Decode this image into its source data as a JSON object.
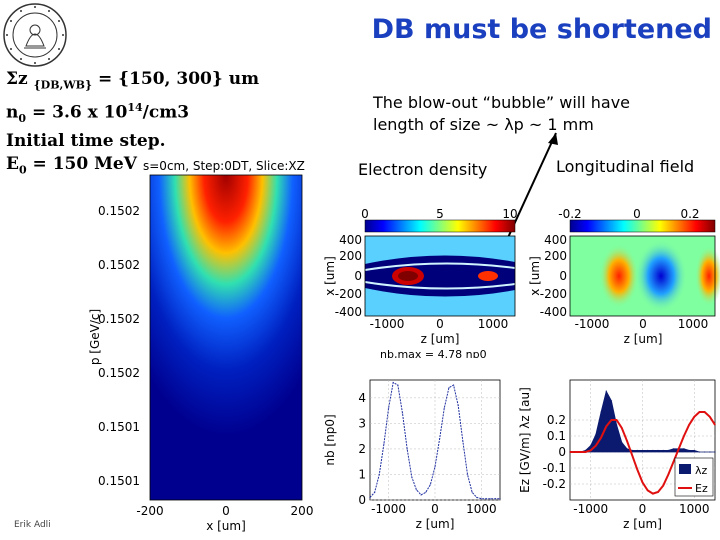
{
  "slide": {
    "title": "DB must be shortened",
    "params": {
      "line1_main": "Σz ",
      "line1_sub": "{DB,WB}",
      "line1_rest": " = {150, 300} um",
      "line2_a": "n",
      "line2_sub": "0",
      "line2_b": " = 3.6 x 10",
      "line2_sup": "14",
      "line2_c": "/cm3",
      "line3": "Initial time step.",
      "line4_a": "E",
      "line4_sub": "0",
      "line4_b": " = 150 MeV"
    },
    "bubble_line1": "The blow-out “bubble” will have",
    "bubble_line2": "length of size ~ λp ~ 1 mm",
    "electron_density_label": "Electron density",
    "longitudinal_field_label": "Longitudinal field",
    "footer": "Erik Adli"
  },
  "phase_plot": {
    "header": "s=0cm, Step:0DT, Slice:XZ",
    "ylabel": "p [GeV/c]",
    "xlabel": "x [um]",
    "yticks": [
      "0.1502",
      "0.1502",
      "0.1502",
      "0.1502",
      "0.1501",
      "0.1501"
    ],
    "xticks": [
      "-200",
      "0",
      "200"
    ]
  },
  "density_map": {
    "colorbar_ticks": [
      "0",
      "5",
      "10"
    ],
    "yticks": [
      "400",
      "200",
      "0",
      "-200",
      "-400"
    ],
    "xticks": [
      "-1000",
      "0",
      "1000"
    ],
    "ylabel": "x [um]",
    "xlabel": "z [um]",
    "annotation": "nb,max = 4.78 np0"
  },
  "field_map": {
    "colorbar_ticks": [
      "-0.2",
      "0",
      "0.2"
    ],
    "yticks": [
      "400",
      "200",
      "0",
      "-200",
      "-400"
    ],
    "xticks": [
      "-1000",
      "0",
      "1000"
    ],
    "ylabel": "x [um]",
    "xlabel": "z [um]"
  },
  "chart_data": [
    {
      "type": "line",
      "title": "nb,max = 4.78 np0",
      "xlabel": "z [um]",
      "ylabel": "nb [np0]",
      "xlim": [
        -1400,
        1400
      ],
      "ylim": [
        0,
        4.7
      ],
      "xticks": [
        -1000,
        0,
        1000
      ],
      "yticks": [
        0,
        1,
        2,
        3,
        4
      ],
      "series": [
        {
          "name": "nb",
          "x": [
            -1400,
            -1300,
            -1200,
            -1100,
            -1000,
            -900,
            -800,
            -700,
            -600,
            -500,
            -400,
            -300,
            -200,
            -100,
            0,
            100,
            200,
            300,
            400,
            500,
            600,
            700,
            800,
            900,
            1000,
            1100,
            1200,
            1300,
            1400
          ],
          "values": [
            0.1,
            0.3,
            1.0,
            2.2,
            3.6,
            4.6,
            4.5,
            3.4,
            2.0,
            0.9,
            0.4,
            0.2,
            0.3,
            0.6,
            1.3,
            2.4,
            3.6,
            4.4,
            4.5,
            3.7,
            2.3,
            1.0,
            0.3,
            0.1,
            0.05,
            0.05,
            0.05,
            0.05,
            0.05
          ]
        }
      ]
    },
    {
      "type": "area",
      "xlabel": "z [um]",
      "ylabel": "Ez [GV/m] λz [au]",
      "xlim": [
        -1400,
        1400
      ],
      "ylim": [
        -0.3,
        0.45
      ],
      "xticks": [
        -1000,
        0,
        1000
      ],
      "yticks": [
        -0.2,
        -0.1,
        0,
        0.1,
        0.2
      ],
      "legend": [
        "λz",
        "Ez"
      ],
      "legend_position": "bottom-right",
      "series": [
        {
          "name": "λz",
          "x": [
            -1400,
            -1300,
            -1200,
            -1100,
            -1000,
            -900,
            -800,
            -700,
            -600,
            -500,
            -400,
            -300,
            -200,
            -100,
            0,
            100,
            200,
            300,
            400,
            500,
            600,
            700,
            800,
            900,
            1000,
            1100,
            1200,
            1300,
            1400
          ],
          "values": [
            0,
            0,
            0,
            0.01,
            0.04,
            0.11,
            0.25,
            0.38,
            0.32,
            0.17,
            0.06,
            0.02,
            0.01,
            0.01,
            0.01,
            0.01,
            0.01,
            0.01,
            0.01,
            0.01,
            0.02,
            0.02,
            0.02,
            0.01,
            0.01,
            0,
            0,
            0,
            0
          ]
        },
        {
          "name": "Ez",
          "x": [
            -1400,
            -1300,
            -1200,
            -1100,
            -1000,
            -900,
            -800,
            -700,
            -600,
            -500,
            -400,
            -300,
            -200,
            -100,
            0,
            100,
            200,
            300,
            400,
            500,
            600,
            700,
            800,
            900,
            1000,
            1100,
            1200,
            1300,
            1400
          ],
          "values": [
            0,
            0,
            0,
            0,
            0.01,
            0.04,
            0.09,
            0.16,
            0.2,
            0.2,
            0.15,
            0.07,
            -0.02,
            -0.11,
            -0.19,
            -0.24,
            -0.26,
            -0.25,
            -0.21,
            -0.14,
            -0.06,
            0.02,
            0.1,
            0.17,
            0.22,
            0.25,
            0.25,
            0.22,
            0.17
          ]
        }
      ]
    }
  ]
}
